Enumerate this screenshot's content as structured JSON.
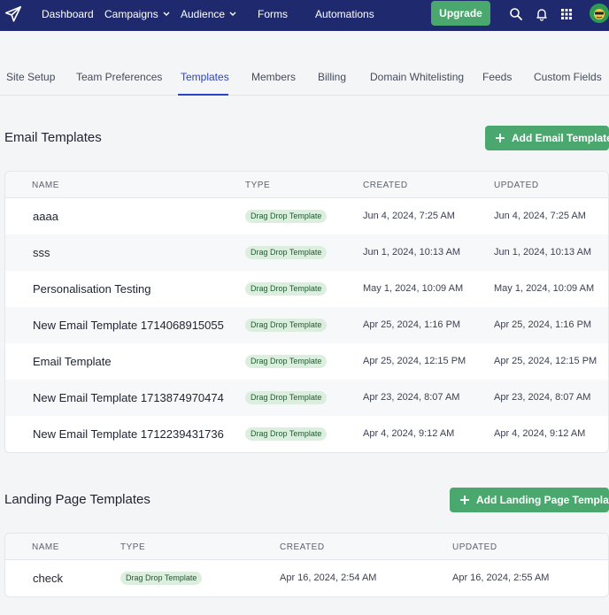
{
  "topnav": {
    "items": [
      {
        "label": "Dashboard"
      },
      {
        "label": "Campaigns"
      },
      {
        "label": "Audience"
      },
      {
        "label": "Forms"
      },
      {
        "label": "Automations"
      }
    ],
    "upgrade_label": "Upgrade",
    "icons": [
      "paper-plane-logo",
      "search-icon",
      "bell-icon",
      "grid-apps-icon",
      "avatar"
    ],
    "colors": {
      "nav_bg": "#1f2a6e",
      "accent_green": "#4aa86f"
    }
  },
  "tabs": [
    {
      "label": "Site Setup"
    },
    {
      "label": "Team Preferences"
    },
    {
      "label": "Templates",
      "active": true
    },
    {
      "label": "Members"
    },
    {
      "label": "Billing"
    },
    {
      "label": "Domain Whitelisting"
    },
    {
      "label": "Feeds"
    },
    {
      "label": "Custom Fields"
    }
  ],
  "email_templates": {
    "title": "Email Templates",
    "add_label": "Add Email Template",
    "columns": [
      "NAME",
      "TYPE",
      "CREATED",
      "UPDATED"
    ],
    "rows": [
      {
        "name": "aaaa",
        "type": "Drag Drop Template",
        "created": "Jun 4, 2024, 7:25 AM",
        "updated": "Jun 4, 2024, 7:25 AM"
      },
      {
        "name": "sss",
        "type": "Drag Drop Template",
        "created": "Jun 1, 2024, 10:13 AM",
        "updated": "Jun 1, 2024, 10:13 AM"
      },
      {
        "name": "Personalisation Testing",
        "type": "Drag Drop Template",
        "created": "May 1, 2024, 10:09 AM",
        "updated": "May 1, 2024, 10:09 AM"
      },
      {
        "name": "New Email Template 1714068915055",
        "type": "Drag Drop Template",
        "created": "Apr 25, 2024, 1:16 PM",
        "updated": "Apr 25, 2024, 1:16 PM"
      },
      {
        "name": "Email Template",
        "type": "Drag Drop Template",
        "created": "Apr 25, 2024, 12:15 PM",
        "updated": "Apr 25, 2024, 12:15 PM"
      },
      {
        "name": "New Email Template 1713874970474",
        "type": "Drag Drop Template",
        "created": "Apr 23, 2024, 8:07 AM",
        "updated": "Apr 23, 2024, 8:07 AM"
      },
      {
        "name": "New Email Template 1712239431736",
        "type": "Drag Drop Template",
        "created": "Apr 4, 2024, 9:12 AM",
        "updated": "Apr 4, 2024, 9:12 AM"
      }
    ]
  },
  "landing_templates": {
    "title": "Landing Page Templates",
    "add_label": "Add Landing Page Template",
    "columns": [
      "NAME",
      "TYPE",
      "CREATED",
      "UPDATED"
    ],
    "rows": [
      {
        "name": "check",
        "type": "Drag Drop Template",
        "created": "Apr 16, 2024, 2:54 AM",
        "updated": "Apr 16, 2024, 2:55 AM"
      }
    ]
  }
}
